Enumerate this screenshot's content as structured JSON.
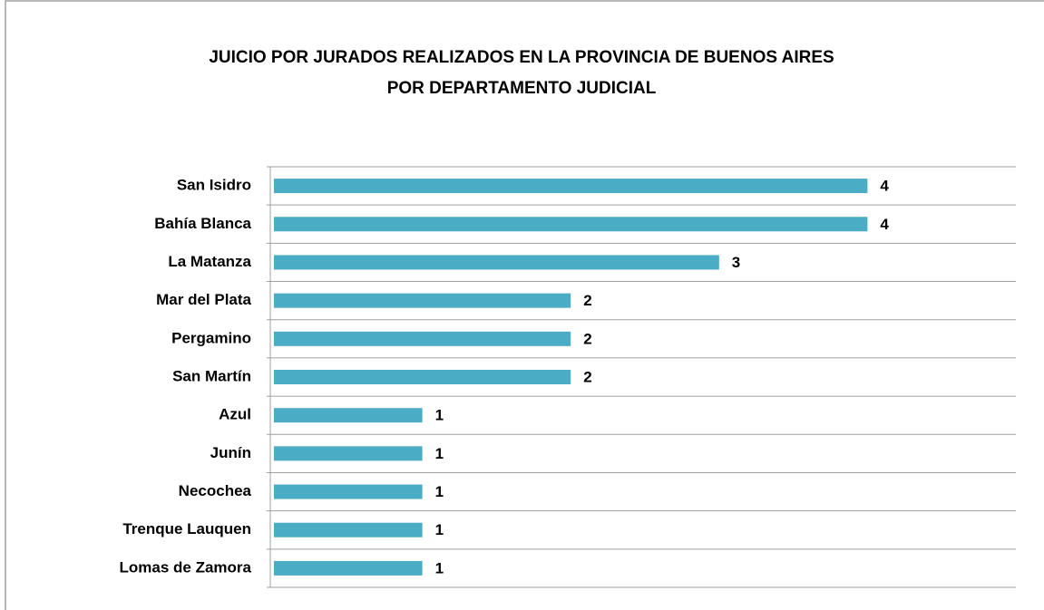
{
  "chart_data": {
    "type": "bar",
    "orientation": "horizontal",
    "title": [
      "JUICIO POR JURADOS REALIZADOS EN LA PROVINCIA DE BUENOS AIRES",
      "POR DEPARTAMENTO JUDICIAL"
    ],
    "categories": [
      "San Isidro",
      "Bahía Blanca",
      "La Matanza",
      "Mar del Plata",
      "Pergamino",
      "San Martín",
      "Azul",
      "Junín",
      "Necochea",
      "Trenque Lauquen",
      "Lomas de Zamora"
    ],
    "values": [
      4,
      4,
      3,
      2,
      2,
      2,
      1,
      1,
      1,
      1,
      1
    ],
    "color": "#4bacc6",
    "xlim": [
      0,
      5
    ]
  }
}
